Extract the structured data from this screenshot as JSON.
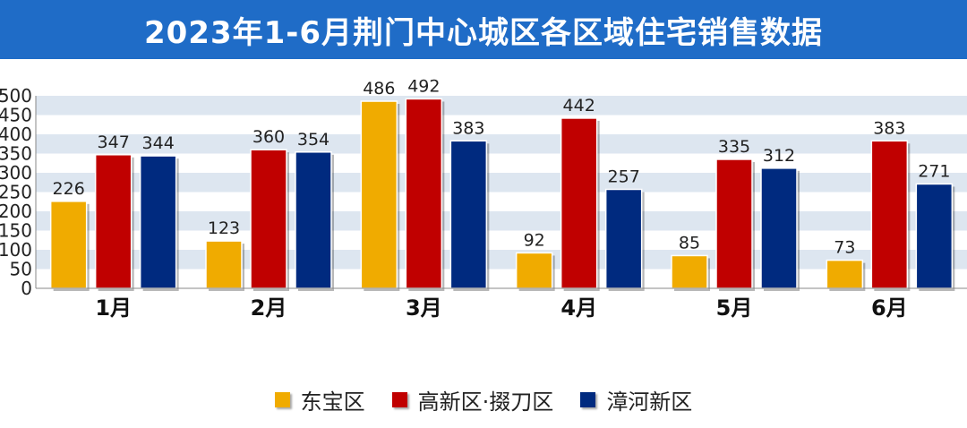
{
  "title": "2023年1-6月荆门中心城区各区域住宅销售数据",
  "colors": {
    "title_bg": "#1f6cc7",
    "band": "#dde6f0",
    "series": [
      "#f0ab00",
      "#c00000",
      "#002a7f"
    ]
  },
  "chart_data": {
    "type": "bar",
    "title": "2023年1-6月荆门中心城区各区域住宅销售数据",
    "categories": [
      "1月",
      "2月",
      "3月",
      "4月",
      "5月",
      "6月"
    ],
    "series": [
      {
        "name": "东宝区",
        "values": [
          226,
          123,
          486,
          92,
          85,
          73
        ]
      },
      {
        "name": "高新区·掇刀区",
        "values": [
          347,
          360,
          492,
          442,
          335,
          383
        ]
      },
      {
        "name": "漳河新区",
        "values": [
          344,
          354,
          383,
          257,
          312,
          271
        ]
      }
    ],
    "ylim": [
      0,
      500
    ],
    "yticks": [
      0,
      50,
      100,
      150,
      200,
      250,
      300,
      350,
      400,
      450,
      500
    ],
    "grid": "alternating horizontal bands",
    "legend_position": "bottom"
  }
}
